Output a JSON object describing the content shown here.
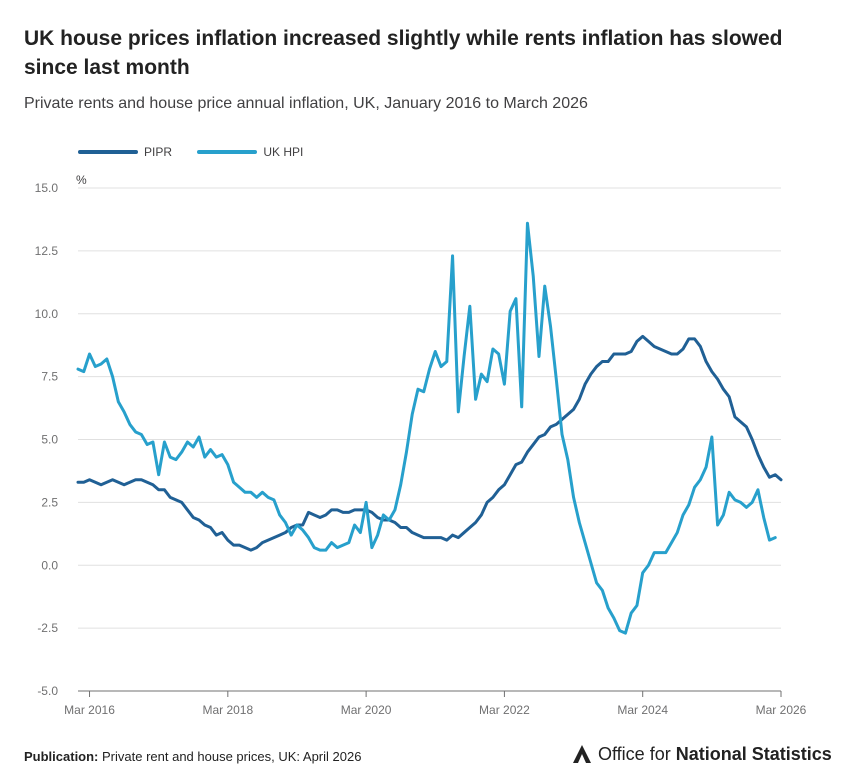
{
  "header": {
    "title": "UK house prices inflation increased slightly while rents inflation has slowed since last month",
    "subtitle": "Private rents and house price annual inflation, UK, January 2016 to March 2026"
  },
  "footer": {
    "publication_label": "Publication:",
    "publication_text": "Private rent and house prices, UK: April 2026",
    "logo_prefix": "Office for",
    "logo_strong": "National Statistics"
  },
  "colors": {
    "pipr": "#206095",
    "hpi": "#27a0cc",
    "grid": "#e0e0e0",
    "axis": "#707071"
  },
  "chart_data": {
    "type": "line",
    "title": "UK house prices inflation increased slightly while rents inflation has slowed since last month",
    "subtitle": "Private rents and house price annual inflation, UK, January 2016 to March 2026",
    "ylabel": "%",
    "xlabel": "",
    "ylim": [
      -5,
      15
    ],
    "yticks": [
      "15.0",
      "12.5",
      "10.0",
      "7.5",
      "5.0",
      "2.5",
      "0.0",
      "-2.5",
      "-5.0"
    ],
    "ytick_values": [
      15,
      12.5,
      10,
      7.5,
      5,
      2.5,
      0,
      -2.5,
      -5
    ],
    "xticks": [
      "Mar 2016",
      "Mar 2018",
      "Mar 2020",
      "Mar 2022",
      "Mar 2024",
      "Mar 2026"
    ],
    "xtick_index": [
      2,
      26,
      50,
      74,
      98,
      122
    ],
    "x_start": "Jan 2016",
    "x_end": "Mar 2026",
    "grid": true,
    "legend_position": "top-left",
    "series": [
      {
        "name": "PIPR",
        "color": "#206095",
        "values": [
          3.3,
          3.3,
          3.4,
          3.3,
          3.2,
          3.3,
          3.4,
          3.3,
          3.2,
          3.3,
          3.4,
          3.4,
          3.3,
          3.2,
          3.0,
          3.0,
          2.7,
          2.6,
          2.5,
          2.2,
          1.9,
          1.8,
          1.6,
          1.5,
          1.2,
          1.3,
          1.0,
          0.8,
          0.8,
          0.7,
          0.6,
          0.7,
          0.9,
          1.0,
          1.1,
          1.2,
          1.3,
          1.5,
          1.6,
          1.6,
          2.1,
          2.0,
          1.9,
          2.0,
          2.2,
          2.2,
          2.1,
          2.1,
          2.2,
          2.2,
          2.2,
          2.1,
          1.9,
          1.8,
          1.8,
          1.7,
          1.5,
          1.5,
          1.3,
          1.2,
          1.1,
          1.1,
          1.1,
          1.1,
          1.0,
          1.2,
          1.1,
          1.3,
          1.5,
          1.7,
          2.0,
          2.5,
          2.7,
          3.0,
          3.2,
          3.6,
          4.0,
          4.1,
          4.5,
          4.8,
          5.1,
          5.2,
          5.5,
          5.6,
          5.8,
          6.0,
          6.2,
          6.6,
          7.2,
          7.6,
          7.9,
          8.1,
          8.1,
          8.4,
          8.4,
          8.4,
          8.5,
          8.9,
          9.1,
          8.9,
          8.7,
          8.6,
          8.5,
          8.4,
          8.4,
          8.6,
          9.0,
          9.0,
          8.7,
          8.1,
          7.7,
          7.4,
          7.0,
          6.7,
          5.9,
          5.7,
          5.5,
          5.0,
          4.4,
          3.9,
          3.5,
          3.6,
          3.4
        ]
      },
      {
        "name": "UK HPI",
        "color": "#27a0cc",
        "values": [
          7.8,
          7.7,
          8.4,
          7.9,
          8.0,
          8.2,
          7.5,
          6.5,
          6.1,
          5.6,
          5.3,
          5.2,
          4.8,
          4.9,
          3.6,
          4.9,
          4.3,
          4.2,
          4.5,
          4.9,
          4.7,
          5.1,
          4.3,
          4.6,
          4.3,
          4.4,
          4.0,
          3.3,
          3.1,
          2.9,
          2.9,
          2.7,
          2.9,
          2.7,
          2.6,
          2.0,
          1.7,
          1.2,
          1.6,
          1.4,
          1.1,
          0.7,
          0.6,
          0.6,
          0.9,
          0.7,
          0.8,
          0.9,
          1.6,
          1.3,
          2.5,
          0.7,
          1.2,
          2.0,
          1.8,
          2.2,
          3.2,
          4.5,
          6.0,
          7.0,
          6.9,
          7.8,
          8.5,
          7.9,
          8.1,
          12.3,
          6.1,
          8.3,
          10.3,
          6.6,
          7.6,
          7.3,
          8.6,
          8.4,
          7.2,
          10.1,
          10.6,
          6.3,
          13.6,
          11.5,
          8.3,
          11.1,
          9.5,
          7.4,
          5.2,
          4.2,
          2.7,
          1.7,
          0.9,
          0.1,
          -0.7,
          -1.0,
          -1.7,
          -2.1,
          -2.6,
          -2.7,
          -1.9,
          -1.6,
          -0.3,
          0.0,
          0.5,
          0.5,
          0.5,
          0.9,
          1.3,
          2.0,
          2.4,
          3.1,
          3.4,
          3.9,
          5.1,
          1.6,
          2.0,
          2.9,
          2.6,
          2.5,
          2.3,
          2.5,
          3.0,
          1.9,
          1.0,
          1.1
        ]
      }
    ]
  }
}
